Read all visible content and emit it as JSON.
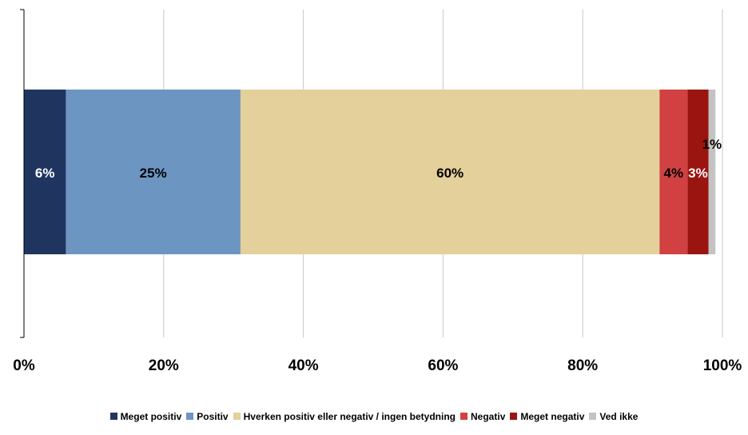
{
  "chart_data": {
    "type": "bar",
    "orientation": "horizontal",
    "stacked": true,
    "title": "",
    "xlabel": "",
    "ylabel": "",
    "xlim": [
      0,
      100
    ],
    "x_ticks": [
      "0%",
      "20%",
      "40%",
      "60%",
      "80%",
      "100%"
    ],
    "grid": "vertical",
    "legend_position": "bottom",
    "series": [
      {
        "name": "Meget positiv",
        "value": 6,
        "label": "6%",
        "color": "#1f3560",
        "label_color": "#ffffff"
      },
      {
        "name": "Positiv",
        "value": 25,
        "label": "25%",
        "color": "#6c96c1",
        "label_color": "#000000"
      },
      {
        "name": "Hverken positiv eller negativ / ingen betydning",
        "value": 60,
        "label": "60%",
        "color": "#e3d09a",
        "label_color": "#000000"
      },
      {
        "name": "Negativ",
        "value": 4,
        "label": "4%",
        "color": "#d24141",
        "label_color": "#000000"
      },
      {
        "name": "Meget negativ",
        "value": 3,
        "label": "3%",
        "color": "#9a1410",
        "label_color": "#ffffff"
      },
      {
        "name": "Ved ikke",
        "value": 1,
        "label": "1%",
        "color": "#c3c3c3",
        "label_color": "#000000"
      }
    ]
  }
}
